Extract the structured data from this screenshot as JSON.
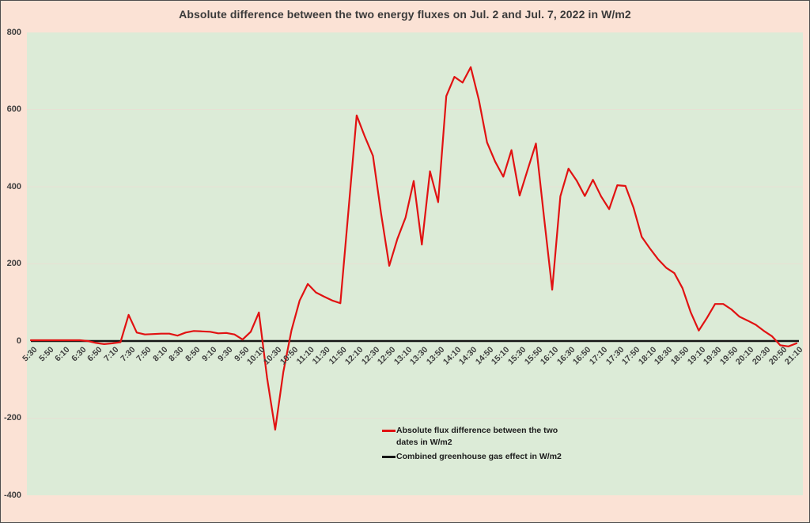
{
  "title": "Absolute difference between the two energy fluxes on Jul. 2 and Jul. 7, 2022 in W/m2",
  "colors": {
    "outer_bg": "#fbe2d5",
    "plot_bg": "#dcebd7",
    "gridline": "#e7e1d4",
    "border": "#4d4d4d",
    "title_text": "#3a3a3a",
    "axis_text": "#3f3f3f",
    "legend_text": "#1c1c1c",
    "red_series": "#e11212",
    "black_series": "#161616"
  },
  "legend": {
    "entries": [
      {
        "swatch_color": "#e11212",
        "lines": [
          "Absolute flux difference between the two",
          "dates in W/m2"
        ]
      },
      {
        "swatch_color": "#161616",
        "lines": [
          "Combined greenhouse gas effect in W/m2"
        ]
      }
    ]
  },
  "chart_data": {
    "type": "line",
    "title": "Absolute difference between the two energy fluxes on Jul. 2 and Jul. 7, 2022 in W/m2",
    "xlabel": "",
    "ylabel": "",
    "ylim": [
      -400,
      800
    ],
    "y_ticks": [
      800,
      600,
      400,
      200,
      0,
      -200,
      -400
    ],
    "y_gridlines": [
      600,
      400,
      200,
      -200
    ],
    "grid": "horizontal",
    "legend_position": "inside-bottom-center",
    "x": [
      "5:30",
      "5:40",
      "5:50",
      "6:00",
      "6:10",
      "6:20",
      "6:30",
      "6:40",
      "6:50",
      "7:00",
      "7:10",
      "7:20",
      "7:30",
      "7:40",
      "7:50",
      "8:00",
      "8:10",
      "8:20",
      "8:30",
      "8:40",
      "8:50",
      "9:00",
      "9:10",
      "9:20",
      "9:30",
      "9:40",
      "9:50",
      "10:00",
      "10:10",
      "10:20",
      "10:30",
      "10:40",
      "10:50",
      "11:00",
      "11:10",
      "11:20",
      "11:30",
      "11:40",
      "11:50",
      "12:00",
      "12:10",
      "12:20",
      "12:30",
      "12:40",
      "12:50",
      "13:00",
      "13:10",
      "13:20",
      "13:30",
      "13:40",
      "13:50",
      "14:00",
      "14:10",
      "14:20",
      "14:30",
      "14:40",
      "14:50",
      "15:00",
      "15:10",
      "15:20",
      "15:30",
      "15:40",
      "15:50",
      "16:00",
      "16:10",
      "16:20",
      "16:30",
      "16:40",
      "16:50",
      "17:00",
      "17:10",
      "17:20",
      "17:30",
      "17:40",
      "17:50",
      "18:00",
      "18:10",
      "18:20",
      "18:30",
      "18:40",
      "18:50",
      "19:00",
      "19:10",
      "19:20",
      "19:30",
      "19:40",
      "19:50",
      "20:00",
      "20:10",
      "20:20",
      "20:30",
      "20:40",
      "20:50",
      "21:00",
      "21:10"
    ],
    "x_tick_labels": [
      "5:30",
      "5:50",
      "6:10",
      "6:30",
      "6:50",
      "7:10",
      "7:30",
      "7:50",
      "8:10",
      "8:30",
      "8:50",
      "9:10",
      "9:30",
      "9:50",
      "10:10",
      "10:30",
      "10:50",
      "11:10",
      "11:30",
      "11:50",
      "12:10",
      "12:30",
      "12:50",
      "13:10",
      "13:30",
      "13:50",
      "14:10",
      "14:30",
      "14:50",
      "15:10",
      "15:30",
      "15:50",
      "16:10",
      "16:30",
      "16:50",
      "17:10",
      "17:30",
      "17:50",
      "18:10",
      "18:30",
      "18:50",
      "19:10",
      "19:30",
      "19:50",
      "20:10",
      "20:30",
      "20:50",
      "21:10"
    ],
    "series": [
      {
        "name": "Absolute flux difference between the two dates in W/m2",
        "color": "#e11212",
        "values": [
          2,
          2,
          2,
          2,
          2,
          2,
          2,
          0,
          -5,
          -8,
          -6,
          -3,
          68,
          22,
          17,
          18,
          19,
          19,
          14,
          22,
          26,
          25,
          24,
          20,
          21,
          17,
          4,
          24,
          74,
          -95,
          -230,
          -80,
          28,
          105,
          148,
          126,
          115,
          105,
          98,
          340,
          585,
          530,
          480,
          330,
          195,
          265,
          320,
          415,
          250,
          440,
          360,
          635,
          685,
          670,
          710,
          625,
          515,
          465,
          426,
          495,
          377,
          445,
          512,
          320,
          133,
          375,
          447,
          416,
          376,
          418,
          375,
          342,
          404,
          402,
          345,
          270,
          240,
          212,
          190,
          176,
          137,
          75,
          27,
          60,
          96,
          96,
          82,
          63,
          53,
          42,
          26,
          12,
          -11,
          -14,
          -6
        ]
      },
      {
        "name": "Combined greenhouse gas effect in W/m2",
        "color": "#161616",
        "constant": 0
      }
    ]
  }
}
